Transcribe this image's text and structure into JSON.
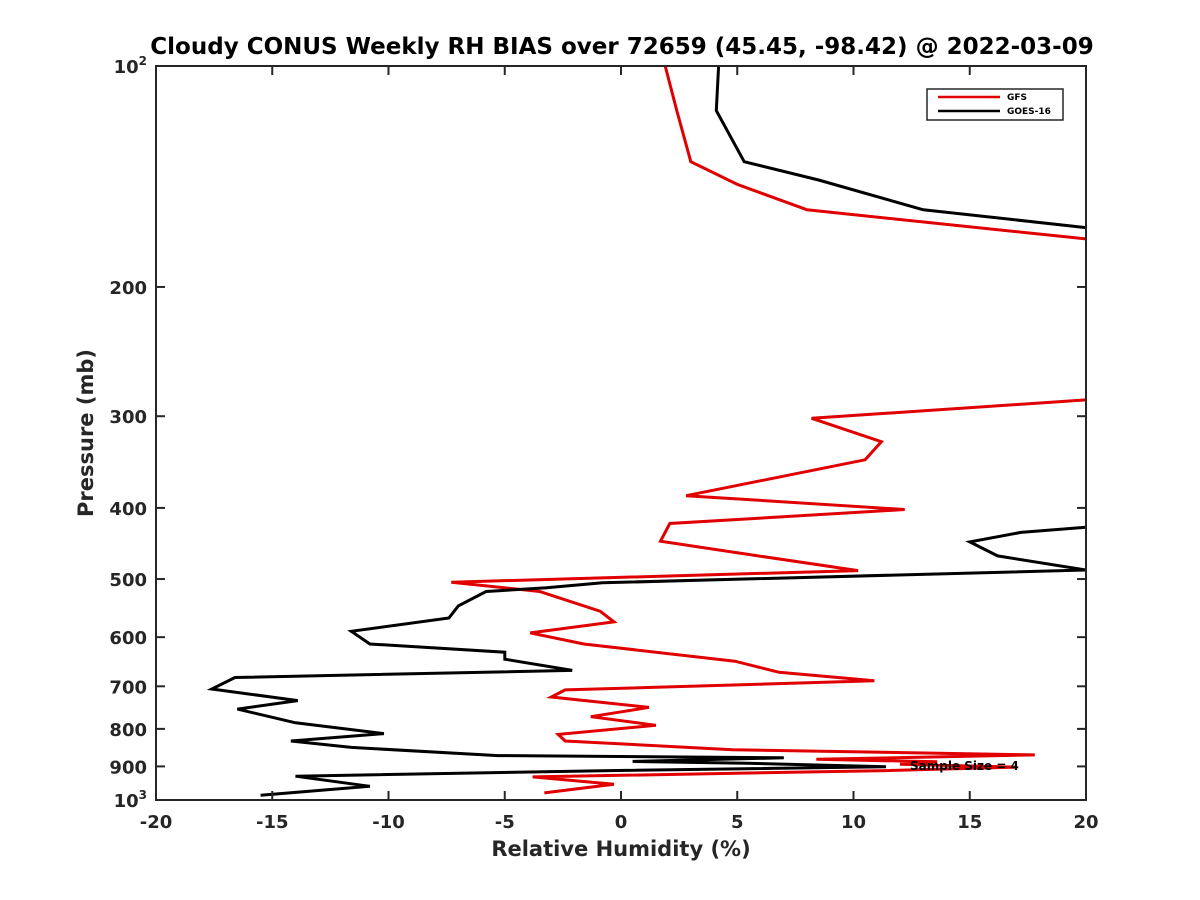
{
  "chart_data": {
    "type": "line",
    "title": "Cloudy CONUS Weekly RH BIAS over 72659 (45.45, -98.42) @ 2022-03-09",
    "xlabel": "Relative Humidity (%)",
    "ylabel": "Pressure (mb)",
    "xlim": [
      -20,
      20
    ],
    "ylim": [
      100,
      1000
    ],
    "y_scale": "log",
    "y_reversed": true,
    "x_ticks": [
      "-20",
      "-15",
      "-10",
      "-5",
      "0",
      "5",
      "10",
      "15",
      "20"
    ],
    "y_ticks": [
      {
        "value": 100,
        "base": "10",
        "exp": "2"
      },
      {
        "value": 200,
        "label": "200"
      },
      {
        "value": 300,
        "label": "300"
      },
      {
        "value": 400,
        "label": "400"
      },
      {
        "value": 500,
        "label": "500"
      },
      {
        "value": 600,
        "label": "600"
      },
      {
        "value": 700,
        "label": "700"
      },
      {
        "value": 800,
        "label": "800"
      },
      {
        "value": 900,
        "label": "900"
      },
      {
        "value": 1000,
        "base": "10",
        "exp": "3"
      }
    ],
    "legend_position": "top-right",
    "annotation": "Sample Size = 4",
    "series": [
      {
        "name": "GFS",
        "color": "#e00000",
        "segments": [
          [
            [
              1.9,
              100
            ],
            [
              2.4,
              115
            ],
            [
              3.0,
              135
            ],
            [
              5.0,
              145
            ],
            [
              8.0,
              157
            ],
            [
              20.0,
              172
            ]
          ],
          [
            [
              20.0,
              285
            ],
            [
              8.2,
              302
            ],
            [
              11.2,
              325
            ],
            [
              10.5,
              344
            ],
            [
              2.8,
              385
            ],
            [
              12.2,
              402
            ],
            [
              2.1,
              420
            ],
            [
              1.7,
              444
            ],
            [
              5.5,
              463
            ],
            [
              10.2,
              487
            ],
            [
              -7.3,
              505
            ],
            [
              -3.5,
              520
            ],
            [
              -0.9,
              553
            ],
            [
              -0.3,
              572
            ],
            [
              -3.9,
              592
            ],
            [
              -1.6,
              613
            ],
            [
              4.9,
              647
            ],
            [
              6.8,
              670
            ],
            [
              10.9,
              688
            ],
            [
              -2.4,
              708
            ],
            [
              -3.0,
              724
            ],
            [
              1.2,
              748
            ],
            [
              -1.3,
              770
            ],
            [
              1.5,
              791
            ],
            [
              -2.7,
              814
            ],
            [
              -2.4,
              831
            ],
            [
              4.8,
              854
            ],
            [
              17.8,
              868
            ],
            [
              8.4,
              880
            ],
            [
              13.6,
              887
            ],
            [
              12.0,
              894
            ],
            [
              17.0,
              902
            ],
            [
              11.4,
              912
            ],
            [
              -3.8,
              930
            ],
            [
              -0.3,
              952
            ],
            [
              -3.3,
              978
            ]
          ]
        ]
      },
      {
        "name": "GOES-16",
        "color": "#000000",
        "segments": [
          [
            [
              4.2,
              100
            ],
            [
              4.1,
              115
            ],
            [
              5.3,
              135
            ],
            [
              8.5,
              143
            ],
            [
              13.0,
              157
            ],
            [
              20.0,
              166
            ]
          ],
          [
            [
              20.0,
              425
            ],
            [
              17.2,
              432
            ],
            [
              15.0,
              445
            ],
            [
              16.2,
              465
            ],
            [
              20.0,
              486
            ],
            [
              -0.8,
              506
            ],
            [
              -3.2,
              514
            ],
            [
              -5.8,
              520
            ],
            [
              -7.0,
              544
            ],
            [
              -7.4,
              565
            ],
            [
              -11.6,
              589
            ],
            [
              -10.8,
              613
            ],
            [
              -5.0,
              629
            ],
            [
              -5.0,
              643
            ],
            [
              -2.1,
              666
            ],
            [
              -16.6,
              681
            ],
            [
              -17.6,
              706
            ],
            [
              -13.9,
              732
            ],
            [
              -16.5,
              752
            ],
            [
              -14.0,
              785
            ],
            [
              -10.2,
              812
            ],
            [
              -14.2,
              831
            ],
            [
              -11.6,
              848
            ],
            [
              -5.3,
              870
            ],
            [
              7.0,
              876
            ],
            [
              0.5,
              886
            ],
            [
              5.4,
              891
            ],
            [
              11.4,
              901
            ],
            [
              -0.5,
              912
            ],
            [
              -14.0,
              928
            ],
            [
              -10.8,
              958
            ],
            [
              -15.5,
              985
            ]
          ]
        ]
      }
    ]
  }
}
